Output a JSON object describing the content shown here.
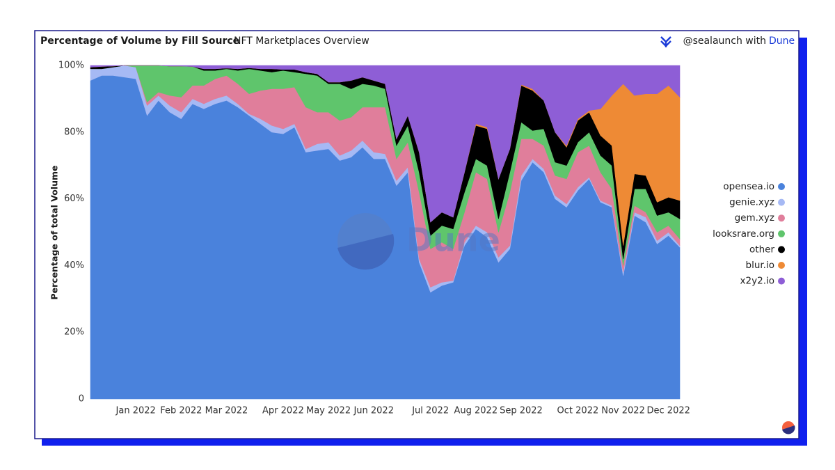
{
  "chart_data": {
    "type": "stacked_area",
    "title": "Percentage of Volume by Fill Source",
    "subtitle": "NFT Marketplaces Overview",
    "attribution": "@sealaunch with",
    "attribution_link": "Dune",
    "watermark": "Dune",
    "y_label": "Percentage of total Volume",
    "legend": "right",
    "categories": [
      null,
      null,
      null,
      null,
      "Jan 2022",
      null,
      null,
      null,
      "Feb 2022",
      null,
      null,
      null,
      "Mar 2022",
      null,
      null,
      null,
      null,
      "Apr 2022",
      null,
      null,
      null,
      "May 2022",
      null,
      null,
      null,
      "Jun 2022",
      null,
      null,
      null,
      null,
      "Jul 2022",
      null,
      null,
      null,
      "Aug 2022",
      null,
      null,
      null,
      "Sep 2022",
      null,
      null,
      null,
      null,
      "Oct 2022",
      null,
      null,
      null,
      "Nov 2022",
      null,
      null,
      null,
      "Dec 2022",
      null
    ],
    "ylim": [
      0,
      100
    ],
    "yticks": [
      0,
      {
        "value": 20,
        "label": "20%"
      },
      {
        "value": 40,
        "label": "40%"
      },
      {
        "value": 60,
        "label": "60%"
      },
      {
        "value": 80,
        "label": "80%"
      },
      {
        "value": 100,
        "label": "100%"
      }
    ],
    "series": [
      {
        "name": "opensea.io",
        "color": "#4a82dc",
        "values": [
          95.5,
          97,
          97,
          96.5,
          96,
          85,
          89.5,
          86,
          84,
          88.5,
          87,
          88.5,
          89.5,
          87.5,
          85,
          82.5,
          80,
          79.5,
          81.5,
          74,
          74.5,
          75,
          71.5,
          72.5,
          75.5,
          72,
          72,
          64,
          68,
          41,
          32,
          34,
          35,
          46,
          51,
          48.5,
          41,
          45,
          65.5,
          71,
          68,
          60,
          57.5,
          62.5,
          66,
          59,
          57.5,
          37,
          55,
          53,
          46.5,
          49,
          45.5
        ]
      },
      {
        "name": "genie.xyz",
        "color": "#a6b9f4",
        "values": [
          3.5,
          2,
          2.5,
          3.5,
          3.5,
          3,
          1.5,
          2,
          2,
          1.5,
          1.5,
          1.5,
          1.5,
          1,
          0.5,
          1.5,
          2,
          1.5,
          1,
          1,
          2,
          2,
          1.5,
          2,
          2,
          2,
          1.5,
          1.5,
          1.5,
          1,
          1.5,
          1,
          0.5,
          1,
          1,
          1.5,
          1.5,
          1,
          1.5,
          1,
          1,
          1,
          1,
          1,
          0.5,
          0.5,
          0.5,
          1,
          1,
          1.5,
          1,
          1,
          0.5
        ]
      },
      {
        "name": "gem.xyz",
        "color": "#e07e9b",
        "values": [
          0,
          0,
          0,
          0,
          0,
          1,
          1,
          3,
          4.5,
          4,
          5.5,
          6,
          6,
          6,
          6,
          8.5,
          11,
          12,
          11,
          12.5,
          9.5,
          9,
          10.5,
          10,
          10,
          13.5,
          14,
          6.5,
          7.5,
          20,
          11.5,
          12,
          9.5,
          9,
          16,
          16,
          7.5,
          16,
          11,
          6,
          7,
          6,
          7.5,
          10.5,
          9.5,
          8.5,
          5,
          2,
          2,
          1.5,
          2.5,
          2,
          2
        ]
      },
      {
        "name": "looksrare.org",
        "color": "#5fc56c",
        "values": [
          0,
          0,
          0,
          0,
          0.5,
          11,
          8,
          8.8,
          9.3,
          5.7,
          4.5,
          2.5,
          2,
          4,
          7.5,
          6,
          5,
          5.5,
          4.5,
          10,
          11,
          8.5,
          11,
          8.5,
          7,
          6.5,
          5.5,
          4,
          5,
          6,
          4,
          5,
          6,
          6,
          4,
          4,
          4,
          6,
          5,
          2.5,
          5,
          4,
          4,
          3,
          4,
          5,
          7,
          2,
          5,
          7,
          5,
          4,
          6
        ]
      },
      {
        "name": "other",
        "color": "#000000",
        "values": [
          0.5,
          0.7,
          0.3,
          0,
          0,
          0,
          0,
          0,
          0,
          0,
          0.5,
          0.5,
          0.2,
          0.5,
          0.3,
          0.5,
          1,
          0.3,
          0.8,
          0.5,
          0.5,
          0.5,
          0.5,
          2.5,
          2,
          1.5,
          1.5,
          2,
          3,
          6,
          4,
          4,
          3.5,
          6,
          10,
          11,
          12,
          7,
          11,
          12,
          8.5,
          9,
          5.5,
          6.5,
          6,
          6,
          6,
          4,
          4.5,
          4,
          4,
          4.5,
          5.5
        ]
      },
      {
        "name": "blur.io",
        "color": "#ee8a35",
        "values": [
          0,
          0,
          0,
          0,
          0,
          0,
          0,
          0,
          0,
          0,
          0,
          0,
          0,
          0,
          0,
          0,
          0,
          0,
          0,
          0,
          0,
          0,
          0,
          0,
          0,
          0,
          0,
          0,
          0,
          0,
          0,
          0,
          0,
          0,
          0.5,
          0.5,
          0,
          0,
          0.3,
          0.5,
          0,
          0,
          0.5,
          0.5,
          0.5,
          8,
          15,
          48.5,
          23.5,
          24.5,
          32.5,
          33.5,
          31
        ]
      },
      {
        "name": "x2y2.io",
        "color": "#8e5ed6",
        "values": [
          0.5,
          0.3,
          0.2,
          0,
          0,
          0,
          0,
          0.2,
          0.2,
          0.3,
          1,
          1,
          0.8,
          1,
          0.7,
          1,
          1,
          1.2,
          1.2,
          2,
          2.5,
          5,
          5,
          4.5,
          3.5,
          4.5,
          5.5,
          22,
          15,
          26,
          47,
          44,
          45.5,
          32,
          17.5,
          18.5,
          34,
          25,
          5.7,
          7,
          10.5,
          20,
          24,
          16,
          13.5,
          13,
          9,
          5.5,
          9,
          8.5,
          8.5,
          6,
          9.5
        ]
      }
    ]
  }
}
